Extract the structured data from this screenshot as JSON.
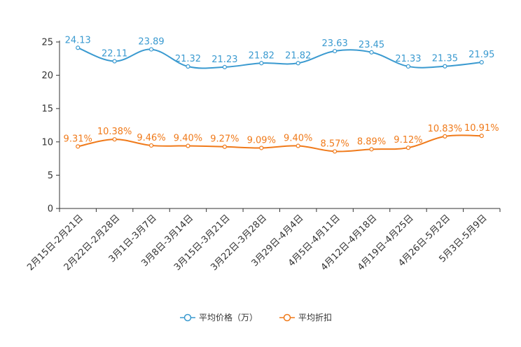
{
  "chart_data": {
    "type": "line",
    "categories": [
      "2月15日-2月21日",
      "2月22日-2月28日",
      "3月1日-3月7日",
      "3月8日-3月14日",
      "3月15日-3月21日",
      "3月22日-3月28日",
      "3月29日-4月4日",
      "4月5日-4月11日",
      "4月12日-4月18日",
      "4月19日-4月25日",
      "4月26日-5月2日",
      "5月3日-5月9日"
    ],
    "ylim": [
      0,
      25
    ],
    "yticks": [
      "0",
      "5",
      "10",
      "15",
      "20",
      "25"
    ],
    "series": [
      {
        "name": "平均价格（万）",
        "color": "#3a9ad0",
        "values": [
          24.13,
          22.11,
          23.89,
          21.32,
          21.23,
          21.82,
          21.82,
          23.63,
          23.45,
          21.33,
          21.35,
          21.95
        ],
        "labels": [
          "24.13",
          "22.11",
          "23.89",
          "21.32",
          "21.23",
          "21.82",
          "21.82",
          "23.63",
          "23.45",
          "21.33",
          "21.35",
          "21.95"
        ]
      },
      {
        "name": "平均折扣",
        "color": "#f07a1a",
        "values": [
          9.31,
          10.38,
          9.46,
          9.4,
          9.27,
          9.09,
          9.4,
          8.57,
          8.89,
          9.12,
          10.83,
          10.91
        ],
        "labels": [
          "9.31%",
          "10.38%",
          "9.46%",
          "9.40%",
          "9.27%",
          "9.09%",
          "9.40%",
          "8.57%",
          "8.89%",
          "9.12%",
          "10.83%",
          "10.91%"
        ]
      }
    ]
  }
}
